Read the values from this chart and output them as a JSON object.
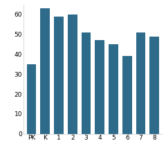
{
  "categories": [
    "PK",
    "K",
    "1",
    "2",
    "3",
    "4",
    "5",
    "6",
    "7",
    "8"
  ],
  "values": [
    35,
    63,
    59,
    60,
    51,
    47,
    45,
    39,
    51,
    49
  ],
  "bar_color": "#2e6b8a",
  "ylim": [
    0,
    65
  ],
  "yticks": [
    0,
    10,
    20,
    30,
    40,
    50,
    60
  ],
  "background_color": "#ffffff",
  "bar_width": 0.7
}
